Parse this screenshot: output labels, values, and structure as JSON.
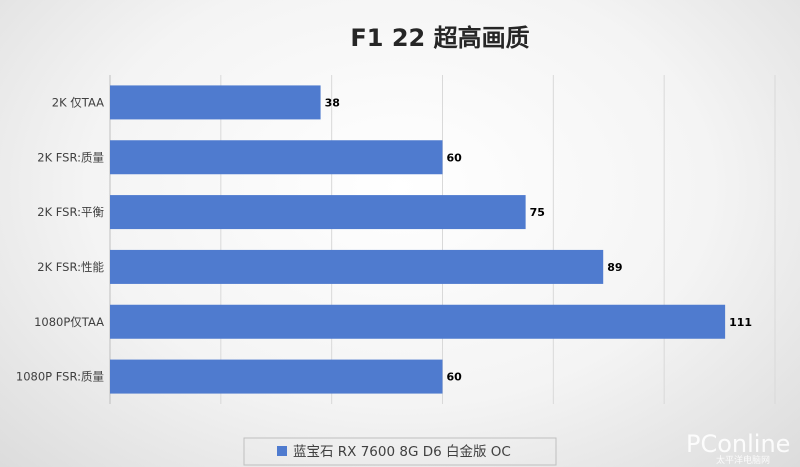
{
  "chart_data": {
    "type": "bar",
    "orientation": "horizontal",
    "title": "F1 22 超高画质",
    "categories": [
      "2K 仅TAA",
      "2K FSR:质量",
      "2K FSR:平衡",
      "2K FSR:性能",
      "1080P仅TAA",
      "1080P FSR:质量"
    ],
    "series": [
      {
        "name": "蓝宝石 RX 7600 8G D6 白金版 OC",
        "values": [
          38,
          60,
          75,
          89,
          111,
          60
        ],
        "color": "#4F7BCF"
      }
    ],
    "xlim": [
      0,
      120
    ],
    "x_gridlines": true,
    "data_labels": true,
    "legend_position": "bottom"
  },
  "watermark": {
    "main": "PConline",
    "sub": "太平洋电脑网"
  }
}
